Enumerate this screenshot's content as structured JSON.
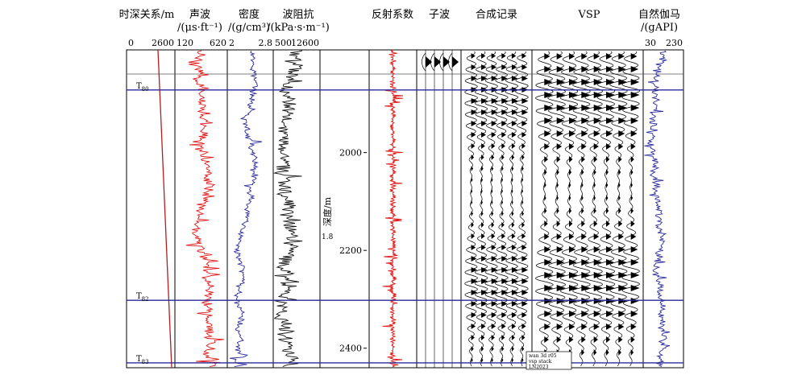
{
  "chart_data": {
    "type": "line",
    "tracks": [
      {
        "key": "tdr",
        "title": "时深关系/m",
        "unit": "",
        "range_min": "0",
        "range_max": "2600",
        "color": "#b02020"
      },
      {
        "key": "dt",
        "title": "声波",
        "unit": "/(μs·ft⁻¹)",
        "range_min": "120",
        "range_max": "620",
        "color": "#e01818"
      },
      {
        "key": "den",
        "title": "密度",
        "unit": "/(g/cm³)",
        "range_min": "2",
        "range_max": "2.8",
        "color": "#2a2a9a"
      },
      {
        "key": "imp",
        "title": "波阻抗",
        "unit": "/(kPa·s·m⁻¹)",
        "range_min": "500",
        "range_max": "12600",
        "color": "#111111"
      },
      {
        "key": "depth",
        "title": "",
        "unit": "",
        "range_min": "",
        "range_max": "",
        "color": "#000000"
      },
      {
        "key": "rc",
        "title": "反射系数",
        "unit": "",
        "range_min": "",
        "range_max": "",
        "color": "#e01818"
      },
      {
        "key": "wav",
        "title": "子波",
        "unit": "",
        "range_min": "",
        "range_max": "",
        "color": "#000000"
      },
      {
        "key": "syn",
        "title": "合成记录",
        "unit": "",
        "range_min": "",
        "range_max": "",
        "color": "#000000"
      },
      {
        "key": "vsp",
        "title": "VSP",
        "unit": "",
        "range_min": "",
        "range_max": "",
        "color": "#000000"
      },
      {
        "key": "gr",
        "title": "自然伽马",
        "unit": "/(gAPI)",
        "range_min": "30",
        "range_max": "230",
        "color": "#2a2a9a"
      }
    ],
    "depth_axis": {
      "label": "深度/m",
      "ticks": [
        2000,
        2200,
        2400
      ],
      "ylim": [
        1790,
        2440
      ]
    },
    "horizons": [
      {
        "name": "T",
        "sub": "80",
        "depth": 1872
      },
      {
        "name": "T",
        "sub": "82",
        "depth": 2302
      },
      {
        "name": "T",
        "sub": "83",
        "depth": 2430
      }
    ],
    "annotations": [
      {
        "text": "1.8",
        "depth": 2172
      }
    ],
    "label_box": [
      "wan 3d r05",
      "vsp stack",
      "LN2023"
    ]
  }
}
